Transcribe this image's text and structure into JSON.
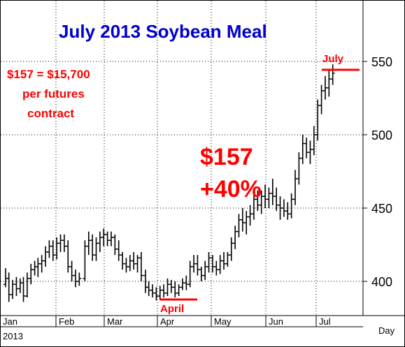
{
  "chart_data": {
    "type": "ohlc",
    "title": "July 2013 Soybean Meal",
    "annotations": {
      "note_lines": [
        "$157 = $15,700",
        "per futures",
        "contract"
      ],
      "gain_amount": "$157",
      "gain_percent": "+40%",
      "low_label": "April",
      "high_label": "July"
    },
    "x_axis": {
      "months": [
        "Jan",
        "Feb",
        "Mar",
        "Apr",
        "May",
        "Jun",
        "Jul"
      ],
      "year_label": "2013",
      "unit_label": "Day"
    },
    "y_axis": {
      "ticks": [
        400,
        450,
        500,
        550
      ],
      "ylim": [
        380,
        590
      ]
    },
    "grid": true,
    "bars": [
      {
        "x": 0.3,
        "o": 398,
        "h": 409,
        "l": 396,
        "c": 402
      },
      {
        "x": 1.0,
        "o": 402,
        "h": 406,
        "l": 386,
        "c": 391
      },
      {
        "x": 1.8,
        "o": 391,
        "h": 401,
        "l": 388,
        "c": 398
      },
      {
        "x": 2.6,
        "o": 398,
        "h": 403,
        "l": 390,
        "c": 395
      },
      {
        "x": 3.4,
        "o": 395,
        "h": 402,
        "l": 392,
        "c": 399
      },
      {
        "x": 4.1,
        "o": 399,
        "h": 403,
        "l": 386,
        "c": 390
      },
      {
        "x": 4.9,
        "o": 390,
        "h": 406,
        "l": 389,
        "c": 402
      },
      {
        "x": 5.7,
        "o": 402,
        "h": 412,
        "l": 398,
        "c": 408
      },
      {
        "x": 6.5,
        "o": 408,
        "h": 414,
        "l": 404,
        "c": 410
      },
      {
        "x": 7.2,
        "o": 410,
        "h": 416,
        "l": 403,
        "c": 412
      },
      {
        "x": 8.0,
        "o": 412,
        "h": 418,
        "l": 406,
        "c": 414
      },
      {
        "x": 8.8,
        "o": 414,
        "h": 424,
        "l": 410,
        "c": 420
      },
      {
        "x": 9.6,
        "o": 420,
        "h": 428,
        "l": 416,
        "c": 424
      },
      {
        "x": 10.4,
        "o": 424,
        "h": 428,
        "l": 414,
        "c": 418
      },
      {
        "x": 11.2,
        "o": 418,
        "h": 430,
        "l": 415,
        "c": 426
      },
      {
        "x": 12.0,
        "o": 426,
        "h": 432,
        "l": 420,
        "c": 428
      },
      {
        "x": 12.8,
        "o": 428,
        "h": 432,
        "l": 420,
        "c": 424
      },
      {
        "x": 13.6,
        "o": 424,
        "h": 428,
        "l": 406,
        "c": 410
      },
      {
        "x": 14.4,
        "o": 410,
        "h": 414,
        "l": 400,
        "c": 404
      },
      {
        "x": 15.2,
        "o": 404,
        "h": 408,
        "l": 396,
        "c": 400
      },
      {
        "x": 16.0,
        "o": 400,
        "h": 406,
        "l": 397,
        "c": 402
      },
      {
        "x": 17.2,
        "o": 402,
        "h": 428,
        "l": 400,
        "c": 424
      },
      {
        "x": 18.0,
        "o": 424,
        "h": 434,
        "l": 418,
        "c": 428
      },
      {
        "x": 18.8,
        "o": 428,
        "h": 432,
        "l": 414,
        "c": 418
      },
      {
        "x": 19.6,
        "o": 418,
        "h": 430,
        "l": 414,
        "c": 426
      },
      {
        "x": 20.4,
        "o": 426,
        "h": 434,
        "l": 420,
        "c": 430
      },
      {
        "x": 21.2,
        "o": 430,
        "h": 436,
        "l": 424,
        "c": 432
      },
      {
        "x": 22.0,
        "o": 432,
        "h": 434,
        "l": 424,
        "c": 428
      },
      {
        "x": 22.8,
        "o": 428,
        "h": 434,
        "l": 424,
        "c": 430
      },
      {
        "x": 23.6,
        "o": 430,
        "h": 432,
        "l": 418,
        "c": 422
      },
      {
        "x": 24.4,
        "o": 422,
        "h": 428,
        "l": 414,
        "c": 418
      },
      {
        "x": 25.2,
        "o": 418,
        "h": 420,
        "l": 408,
        "c": 412
      },
      {
        "x": 26.0,
        "o": 412,
        "h": 416,
        "l": 406,
        "c": 410
      },
      {
        "x": 26.8,
        "o": 410,
        "h": 418,
        "l": 407,
        "c": 414
      },
      {
        "x": 27.6,
        "o": 414,
        "h": 420,
        "l": 408,
        "c": 412
      },
      {
        "x": 28.4,
        "o": 412,
        "h": 418,
        "l": 406,
        "c": 416
      },
      {
        "x": 29.2,
        "o": 416,
        "h": 420,
        "l": 400,
        "c": 404
      },
      {
        "x": 30.1,
        "o": 404,
        "h": 408,
        "l": 392,
        "c": 396
      },
      {
        "x": 30.8,
        "o": 396,
        "h": 400,
        "l": 390,
        "c": 394
      },
      {
        "x": 31.6,
        "o": 394,
        "h": 398,
        "l": 389,
        "c": 392
      },
      {
        "x": 32.4,
        "o": 392,
        "h": 396,
        "l": 387,
        "c": 390
      },
      {
        "x": 33.2,
        "o": 390,
        "h": 397,
        "l": 388,
        "c": 394
      },
      {
        "x": 34.0,
        "o": 394,
        "h": 398,
        "l": 389,
        "c": 392
      },
      {
        "x": 34.8,
        "o": 392,
        "h": 402,
        "l": 390,
        "c": 398
      },
      {
        "x": 35.6,
        "o": 398,
        "h": 401,
        "l": 392,
        "c": 396
      },
      {
        "x": 36.4,
        "o": 396,
        "h": 400,
        "l": 389,
        "c": 392
      },
      {
        "x": 37.2,
        "o": 392,
        "h": 398,
        "l": 390,
        "c": 396
      },
      {
        "x": 38.0,
        "o": 396,
        "h": 402,
        "l": 394,
        "c": 399
      },
      {
        "x": 38.8,
        "o": 399,
        "h": 404,
        "l": 394,
        "c": 398
      },
      {
        "x": 39.6,
        "o": 398,
        "h": 414,
        "l": 396,
        "c": 410
      },
      {
        "x": 40.4,
        "o": 410,
        "h": 418,
        "l": 406,
        "c": 412
      },
      {
        "x": 41.2,
        "o": 412,
        "h": 418,
        "l": 404,
        "c": 408
      },
      {
        "x": 42.0,
        "o": 408,
        "h": 410,
        "l": 400,
        "c": 404
      },
      {
        "x": 42.8,
        "o": 404,
        "h": 414,
        "l": 401,
        "c": 410
      },
      {
        "x": 43.6,
        "o": 410,
        "h": 420,
        "l": 406,
        "c": 416
      },
      {
        "x": 44.4,
        "o": 416,
        "h": 418,
        "l": 406,
        "c": 410
      },
      {
        "x": 45.2,
        "o": 410,
        "h": 414,
        "l": 404,
        "c": 408
      },
      {
        "x": 46.0,
        "o": 408,
        "h": 418,
        "l": 405,
        "c": 414
      },
      {
        "x": 46.8,
        "o": 414,
        "h": 420,
        "l": 408,
        "c": 412
      },
      {
        "x": 47.6,
        "o": 412,
        "h": 420,
        "l": 410,
        "c": 418
      },
      {
        "x": 48.4,
        "o": 418,
        "h": 430,
        "l": 414,
        "c": 426
      },
      {
        "x": 49.2,
        "o": 426,
        "h": 438,
        "l": 422,
        "c": 434
      },
      {
        "x": 50.0,
        "o": 434,
        "h": 446,
        "l": 430,
        "c": 442
      },
      {
        "x": 50.8,
        "o": 442,
        "h": 450,
        "l": 434,
        "c": 440
      },
      {
        "x": 51.6,
        "o": 440,
        "h": 448,
        "l": 432,
        "c": 444
      },
      {
        "x": 52.4,
        "o": 444,
        "h": 452,
        "l": 438,
        "c": 446
      },
      {
        "x": 53.2,
        "o": 446,
        "h": 460,
        "l": 442,
        "c": 456
      },
      {
        "x": 54.0,
        "o": 456,
        "h": 462,
        "l": 448,
        "c": 452
      },
      {
        "x": 54.8,
        "o": 452,
        "h": 462,
        "l": 446,
        "c": 458
      },
      {
        "x": 55.6,
        "o": 458,
        "h": 466,
        "l": 450,
        "c": 456
      },
      {
        "x": 56.4,
        "o": 456,
        "h": 464,
        "l": 450,
        "c": 460
      },
      {
        "x": 57.2,
        "o": 460,
        "h": 470,
        "l": 452,
        "c": 458
      },
      {
        "x": 58.0,
        "o": 458,
        "h": 464,
        "l": 448,
        "c": 452
      },
      {
        "x": 58.8,
        "o": 452,
        "h": 458,
        "l": 442,
        "c": 450
      },
      {
        "x": 59.6,
        "o": 450,
        "h": 456,
        "l": 444,
        "c": 448
      },
      {
        "x": 60.4,
        "o": 448,
        "h": 454,
        "l": 442,
        "c": 446
      },
      {
        "x": 61.2,
        "o": 446,
        "h": 460,
        "l": 443,
        "c": 456
      },
      {
        "x": 62.0,
        "o": 456,
        "h": 476,
        "l": 452,
        "c": 470
      },
      {
        "x": 62.8,
        "o": 470,
        "h": 488,
        "l": 466,
        "c": 484
      },
      {
        "x": 63.6,
        "o": 484,
        "h": 500,
        "l": 480,
        "c": 494
      },
      {
        "x": 64.4,
        "o": 494,
        "h": 498,
        "l": 484,
        "c": 488
      },
      {
        "x": 65.2,
        "o": 488,
        "h": 496,
        "l": 480,
        "c": 490
      },
      {
        "x": 66.0,
        "o": 490,
        "h": 506,
        "l": 486,
        "c": 500
      },
      {
        "x": 66.8,
        "o": 500,
        "h": 524,
        "l": 496,
        "c": 520
      },
      {
        "x": 67.6,
        "o": 520,
        "h": 534,
        "l": 514,
        "c": 530
      },
      {
        "x": 68.4,
        "o": 530,
        "h": 540,
        "l": 524,
        "c": 532
      },
      {
        "x": 69.2,
        "o": 532,
        "h": 544,
        "l": 526,
        "c": 538
      },
      {
        "x": 70.0,
        "o": 538,
        "h": 548,
        "l": 534,
        "c": 542
      }
    ]
  },
  "colors": {
    "title": "#0000cc",
    "annotation": "#ff0000",
    "bars": "#000000",
    "grid": "#000000",
    "frame": "#000000"
  }
}
